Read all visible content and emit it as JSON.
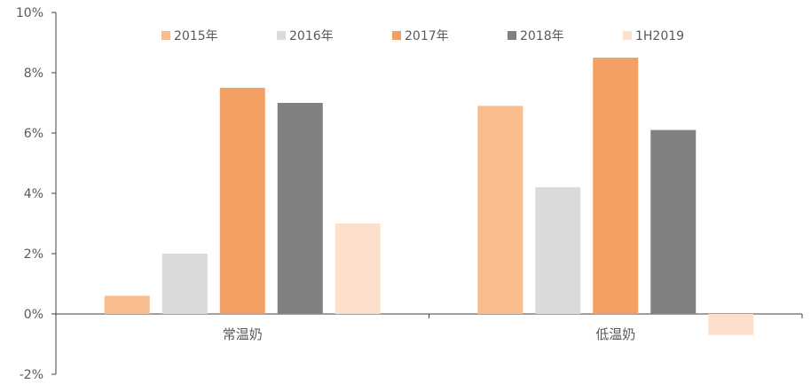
{
  "chart_data": {
    "type": "bar",
    "title": "",
    "xlabel": "",
    "ylabel": "",
    "categories": [
      "常温奶",
      "低温奶"
    ],
    "series": [
      {
        "name": "2015年",
        "values": [
          0.6,
          6.9
        ],
        "color": "#F8BD8F"
      },
      {
        "name": "2016年",
        "values": [
          2.0,
          4.2
        ],
        "color": "#DADADA"
      },
      {
        "name": "2017年",
        "values": [
          7.5,
          8.5
        ],
        "color": "#F2A063"
      },
      {
        "name": "2018年",
        "values": [
          7.0,
          6.1
        ],
        "color": "#808080"
      },
      {
        "name": "1H2019",
        "values": [
          3.0,
          -0.7
        ],
        "color": "#FCE0CC"
      }
    ],
    "ylim": [
      -2,
      10
    ],
    "yticks": [
      -2,
      0,
      2,
      4,
      6,
      8,
      10
    ],
    "ytick_labels": [
      "-2%",
      "0%",
      "2%",
      "4%",
      "6%",
      "8%",
      "10%"
    ],
    "legend_position": "top",
    "grid": false
  }
}
